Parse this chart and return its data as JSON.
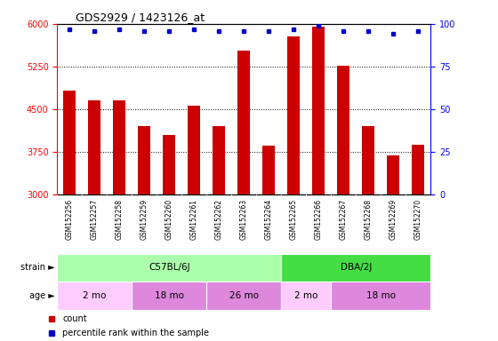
{
  "title": "GDS2929 / 1423126_at",
  "samples": [
    "GSM152256",
    "GSM152257",
    "GSM152258",
    "GSM152259",
    "GSM152260",
    "GSM152261",
    "GSM152262",
    "GSM152263",
    "GSM152264",
    "GSM152265",
    "GSM152266",
    "GSM152267",
    "GSM152268",
    "GSM152269",
    "GSM152270"
  ],
  "counts": [
    4820,
    4650,
    4650,
    4200,
    4050,
    4560,
    4200,
    5530,
    3850,
    5780,
    5950,
    5260,
    4200,
    3680,
    3870
  ],
  "percentile_ranks": [
    97,
    96,
    97,
    96,
    96,
    97,
    96,
    96,
    96,
    97,
    99,
    96,
    96,
    94,
    96
  ],
  "bar_color": "#cc0000",
  "dot_color": "#0000cc",
  "ylim_left": [
    3000,
    6000
  ],
  "ylim_right": [
    0,
    100
  ],
  "yticks_left": [
    3000,
    3750,
    4500,
    5250,
    6000
  ],
  "yticks_right": [
    0,
    25,
    50,
    75,
    100
  ],
  "grid_values": [
    3750,
    4500,
    5250
  ],
  "strain_groups": [
    {
      "label": "C57BL/6J",
      "start": 0,
      "end": 9,
      "color": "#aaffaa"
    },
    {
      "label": "DBA/2J",
      "start": 9,
      "end": 15,
      "color": "#44dd44"
    }
  ],
  "age_groups": [
    {
      "label": "2 mo",
      "start": 0,
      "end": 3,
      "color": "#ffccff"
    },
    {
      "label": "18 mo",
      "start": 3,
      "end": 6,
      "color": "#dd88dd"
    },
    {
      "label": "26 mo",
      "start": 6,
      "end": 9,
      "color": "#dd88dd"
    },
    {
      "label": "2 mo",
      "start": 9,
      "end": 11,
      "color": "#ffccff"
    },
    {
      "label": "18 mo",
      "start": 11,
      "end": 15,
      "color": "#dd88dd"
    }
  ],
  "strain_label": "strain ►",
  "age_label": "age ►",
  "legend_count": "count",
  "legend_percentile": "percentile rank within the sample",
  "background_color": "#ffffff",
  "label_area_color": "#cccccc",
  "bar_width": 0.5
}
